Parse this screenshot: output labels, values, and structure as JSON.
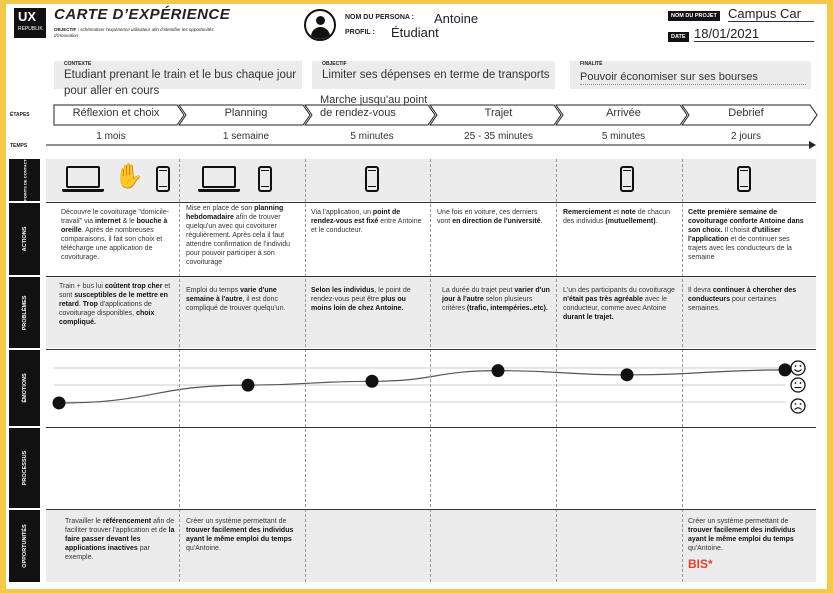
{
  "header": {
    "logo_line1": "UX",
    "logo_line2": "REPUBLIK",
    "title": "CARTE D’EXPÉRIENCE",
    "objectif_label": "OBJECTIF :",
    "objectif_text": "schématiser l’expérience utilisateur afin d’identifier les opportunités d’innovation",
    "persona_label": "NOM DU PERSONA :",
    "persona_value": "Antoine",
    "profil_label": "PROFIL :",
    "profil_value": "Étudiant",
    "projet_label": "NOM DU PROJET",
    "projet_value": "Campus Car",
    "date_label": "DATE",
    "date_value": "18/01/2021"
  },
  "context": {
    "contexte_label": "CONTEXTE",
    "contexte_text": "Etudiant prenant le train et le bus chaque jour pour aller en cours",
    "objectif_label": "OBJECTIF",
    "objectif_text": "Limiter ses dépenses en terme de transports",
    "finalite_label": "FINALITÉ",
    "finalite_text": "Pouvoir économiser sur ses bourses"
  },
  "labels": {
    "etapes": "ÉTAPES",
    "temps": "TEMPS",
    "points_contact": "POINTS DE CONTACT",
    "actions": "ACTIONS",
    "problemes": "PROBLÈMES",
    "emotions": "ÉMOTIONS",
    "processus": "PROCESSUS",
    "opportunites": "OPPORTUNITÉS"
  },
  "stages": [
    {
      "label": "Réflexion et choix",
      "duration": "1 mois"
    },
    {
      "label": "Planning",
      "duration": "1 semaine"
    },
    {
      "label": "Marche jusqu'au point de rendez-vous",
      "duration": "5 minutes"
    },
    {
      "label": "Trajet",
      "duration": "25 - 35 minutes"
    },
    {
      "label": "Arrivée",
      "duration": "5 minutes"
    },
    {
      "label": "Debrief",
      "duration": "2 jours"
    }
  ],
  "touchpoints": [
    [
      "laptop-icon",
      "waving-hand-icon",
      "phone-icon"
    ],
    [
      "laptop-icon",
      "phone-icon"
    ],
    [
      "phone-icon"
    ],
    [],
    [
      "phone-icon"
    ],
    [
      "phone-icon"
    ]
  ],
  "actions": [
    "Découvre le covoiturage \"domicile-travail\" via <b>internet</b> & le <b>bouche à oreille</b>. Après de nombreuses comparaisons, il fait son choix et télécharge une application de covoiturage.",
    "Mise en place de son <b>planning hebdomadaire</b> afin de trouver quelqu'un avec qui covoiturer régulièrement. Après cela il faut attendre confirmation de l'individu pour pouvoir participer à son covoiturage",
    "Via l'application, un <b>point de rendez-vous est fixé</b> entre Antoine et le conducteur.",
    "Une fois en voiture, ces derniers vont <b>en direction de l'université</b>.",
    "<b>Remerciement</b> et <b>note</b> de chacun des individus <b>(mutuellement)</b>.",
    "<b>Cette première semaine de covoiturage conforte Antoine dans son choix.</b> Il choisit <b>d'utiliser l'application</b> et de continuer ses trajets avec les conducteurs de la semaine"
  ],
  "problems": [
    "Train + bus lui <b>coûtent trop cher</b> et sont <b>susceptibles de le mettre en retard</b>. <b>Trop</b> d'applications de covoiturage disponibles, <b>choix compliqué.</b>",
    "Emploi du temps <b>varie d'une semaine à l'autre</b>, il est donc compliqué de trouver quelqu'un.",
    "<b>Selon les individus</b>, le point de rendez-vous peut être <b>plus ou moins loin de chez Antoine.</b>",
    "La durée du trajet peut <b>varier d'un jour à l'autre</b> selon plusieurs critères <b>(trafic, intempéries..etc).</b>",
    "L'un des participants du covoiturage <b>n'était pas très agréable</b> avec le conducteur, comme avec Antoine <b>durant le trajet.</b>",
    "Il devra <b>continuer à chercher des conducteurs</b> pour certaines semaines."
  ],
  "emotions": {
    "levels": [
      0.08,
      0.55,
      0.65,
      0.93,
      0.82,
      0.95
    ],
    "face_labels": [
      "happy-face-icon",
      "neutral-face-icon",
      "sad-face-icon"
    ]
  },
  "opportunities": [
    "Travailler le <b>référencement</b> afin de faciliter trouver l'application et de <b>la faire passer devant les applications inactives</b> par exemple.",
    "Créer un système permettant de <b>trouver facilement des individus ayant le même emploi du temps</b> qu'Antoine.",
    "",
    "",
    "",
    "Créer un système permettant de <b>trouver facilement des individus ayant le même emploi du temps</b> qu'Antoine."
  ],
  "bis": "BIS*"
}
